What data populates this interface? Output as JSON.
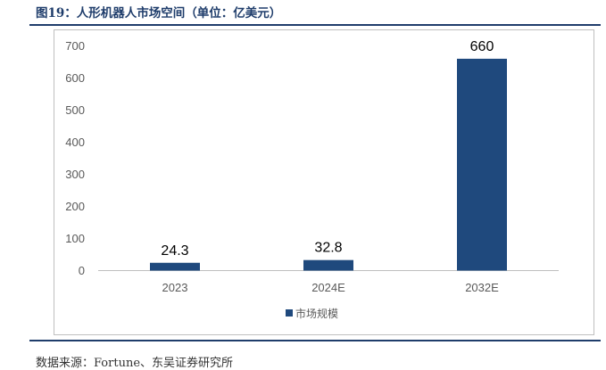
{
  "figure": {
    "title": "图19：人形机器人市场空间（单位：亿美元）",
    "source": "数据来源：Fortune、东吴证券研究所"
  },
  "colors": {
    "bar": "#1f497d",
    "accent": "#1f3d6b"
  },
  "chart_data": {
    "type": "bar",
    "categories": [
      "2023",
      "2024E",
      "2032E"
    ],
    "series": [
      {
        "name": "市场规模",
        "values": [
          24.3,
          32.8,
          660
        ]
      }
    ],
    "data_labels": [
      "24.3",
      "32.8",
      "660"
    ],
    "ylim": [
      0,
      700
    ],
    "yticks": [
      0,
      100,
      200,
      300,
      400,
      500,
      600,
      700
    ],
    "grid": false,
    "legend": "bottom-center",
    "title": "",
    "xlabel": "",
    "ylabel": ""
  }
}
